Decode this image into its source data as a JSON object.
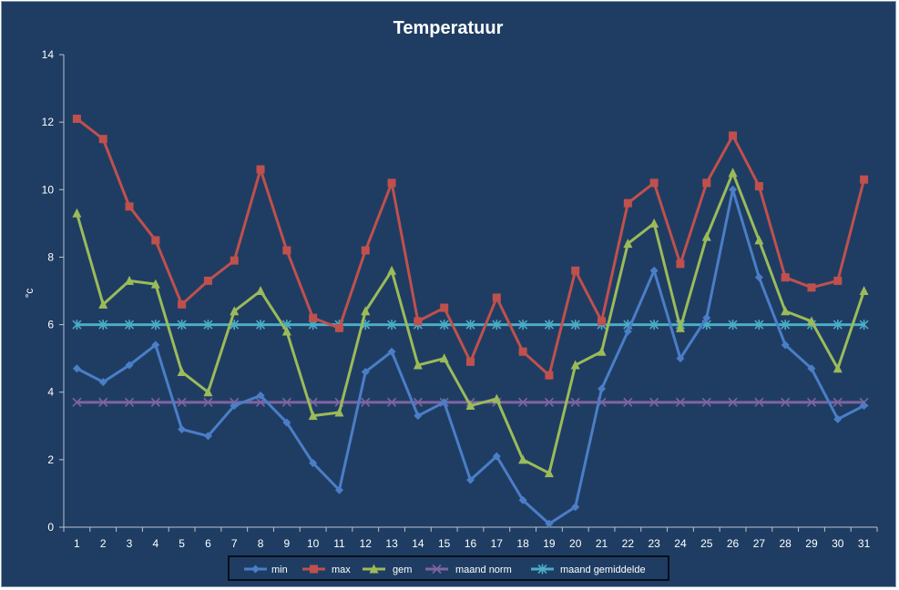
{
  "chart_data": {
    "type": "line",
    "title": "Temperatuur",
    "xlabel": "",
    "ylabel": "°c",
    "ylim": [
      0,
      14
    ],
    "yticks": [
      0,
      2,
      4,
      6,
      8,
      10,
      12,
      14
    ],
    "categories": [
      "1",
      "2",
      "3",
      "4",
      "5",
      "6",
      "7",
      "8",
      "9",
      "10",
      "11",
      "12",
      "13",
      "14",
      "15",
      "16",
      "17",
      "18",
      "19",
      "20",
      "21",
      "22",
      "23",
      "24",
      "25",
      "26",
      "27",
      "28",
      "29",
      "30",
      "31"
    ],
    "grid": false,
    "legend_position": "bottom",
    "series": [
      {
        "name": "min",
        "color": "#4a7ec7",
        "marker": "diamond",
        "values": [
          4.7,
          4.3,
          4.8,
          5.4,
          2.9,
          2.7,
          3.6,
          3.9,
          3.1,
          1.9,
          1.1,
          4.6,
          5.2,
          3.3,
          3.7,
          1.4,
          2.1,
          0.8,
          0.1,
          0.6,
          4.1,
          5.8,
          7.6,
          5.0,
          6.2,
          10.0,
          7.4,
          5.4,
          4.7,
          3.2,
          3.6
        ]
      },
      {
        "name": "max",
        "color": "#c0504d",
        "marker": "square",
        "values": [
          12.1,
          11.5,
          9.5,
          8.5,
          6.6,
          7.3,
          7.9,
          10.6,
          8.2,
          6.2,
          5.9,
          8.2,
          10.2,
          6.1,
          6.5,
          4.9,
          6.8,
          5.2,
          4.5,
          7.6,
          6.1,
          9.6,
          10.2,
          7.8,
          10.2,
          11.6,
          10.1,
          7.4,
          7.1,
          7.3,
          10.3
        ]
      },
      {
        "name": "gem",
        "color": "#9bbb59",
        "marker": "triangle",
        "values": [
          9.3,
          6.6,
          7.3,
          7.2,
          4.6,
          4.0,
          6.4,
          7.0,
          5.8,
          3.3,
          3.4,
          6.4,
          7.6,
          4.8,
          5.0,
          3.6,
          3.8,
          2.0,
          1.6,
          4.8,
          5.2,
          8.4,
          9.0,
          5.9,
          8.6,
          10.5,
          8.5,
          6.4,
          6.1,
          4.7,
          7.0
        ]
      },
      {
        "name": "maand norm",
        "color": "#8064a2",
        "marker": "x",
        "values": [
          3.7,
          3.7,
          3.7,
          3.7,
          3.7,
          3.7,
          3.7,
          3.7,
          3.7,
          3.7,
          3.7,
          3.7,
          3.7,
          3.7,
          3.7,
          3.7,
          3.7,
          3.7,
          3.7,
          3.7,
          3.7,
          3.7,
          3.7,
          3.7,
          3.7,
          3.7,
          3.7,
          3.7,
          3.7,
          3.7,
          3.7
        ]
      },
      {
        "name": "maand gemiddelde",
        "color": "#4bacc6",
        "marker": "star",
        "values": [
          6.0,
          6.0,
          6.0,
          6.0,
          6.0,
          6.0,
          6.0,
          6.0,
          6.0,
          6.0,
          6.0,
          6.0,
          6.0,
          6.0,
          6.0,
          6.0,
          6.0,
          6.0,
          6.0,
          6.0,
          6.0,
          6.0,
          6.0,
          6.0,
          6.0,
          6.0,
          6.0,
          6.0,
          6.0,
          6.0,
          6.0
        ]
      }
    ]
  }
}
